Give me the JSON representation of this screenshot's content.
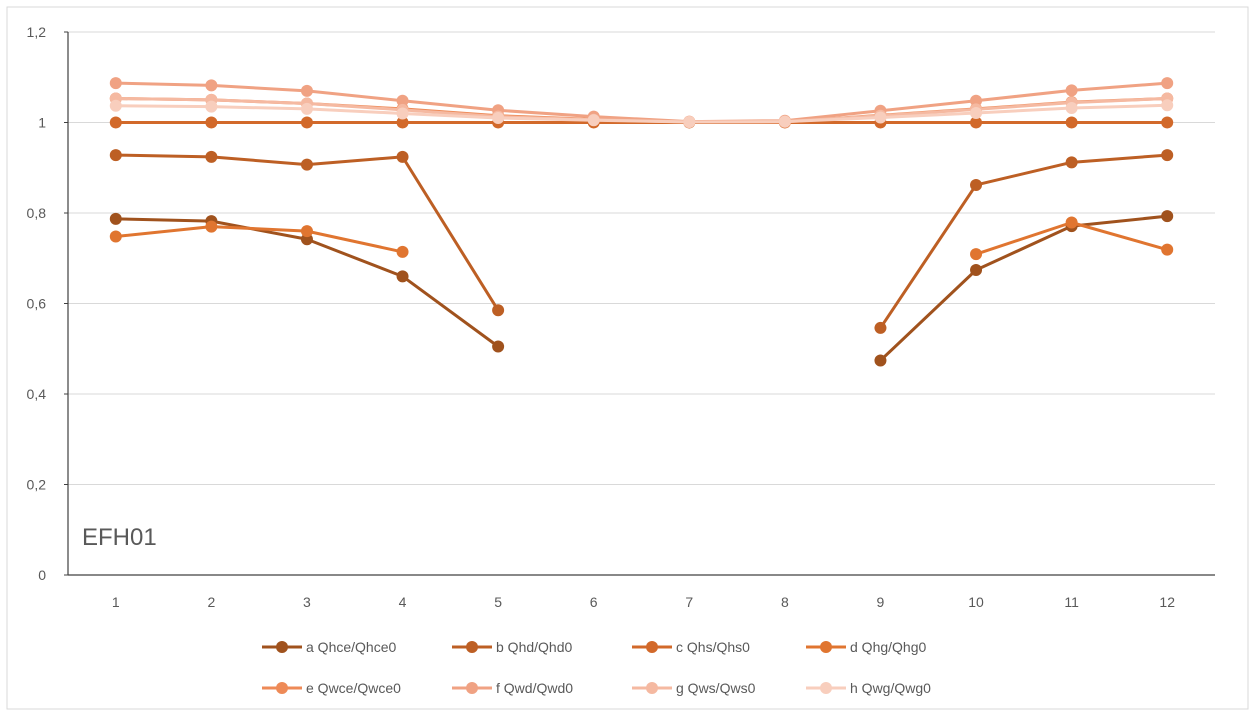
{
  "chart_data": {
    "type": "line",
    "title": "",
    "xlabel": "",
    "ylabel": "",
    "x": [
      1,
      2,
      3,
      4,
      5,
      6,
      7,
      8,
      9,
      10,
      11,
      12
    ],
    "x_tick_labels": [
      "1",
      "2",
      "3",
      "4",
      "5",
      "6",
      "7",
      "8",
      "9",
      "10",
      "11",
      "12"
    ],
    "ylim": [
      0,
      1.2
    ],
    "y_ticks": [
      0,
      0.2,
      0.4,
      0.6,
      0.8,
      1,
      1.2
    ],
    "y_tick_labels": [
      "0",
      "0,2",
      "0,4",
      "0,6",
      "0,8",
      "1",
      "1,2"
    ],
    "grid": "horizontal",
    "legend_position": "bottom",
    "annotation": "EFH01",
    "series": [
      {
        "name": "a Qhce/Qhce0",
        "color": "#a0521d",
        "values": [
          0.787,
          0.782,
          0.742,
          0.66,
          0.505,
          null,
          null,
          null,
          0.474,
          0.674,
          0.771,
          0.793
        ]
      },
      {
        "name": "b Qhd/Qhd0",
        "color": "#bd5f24",
        "values": [
          0.928,
          0.924,
          0.907,
          0.924,
          0.585,
          null,
          null,
          null,
          0.546,
          0.862,
          0.912,
          0.928
        ]
      },
      {
        "name": "c Qhs/Qhs0",
        "color": "#d2692a",
        "values": [
          1,
          1,
          1,
          1,
          1,
          1,
          1,
          1,
          1,
          1,
          1,
          1
        ]
      },
      {
        "name": "d Qhg/Qhg0",
        "color": "#e07530",
        "values": [
          0.748,
          0.77,
          0.76,
          0.714,
          null,
          null,
          null,
          null,
          null,
          0.709,
          0.779,
          0.719
        ]
      },
      {
        "name": "e Qwce/Qwce0",
        "color": "#ee8a57",
        "values": [
          1.053,
          1.05,
          1.042,
          1.03,
          1.015,
          1.007,
          1.001,
          1.001,
          1.016,
          1.03,
          1.045,
          1.053
        ]
      },
      {
        "name": "f Qwd/Qwd0",
        "color": "#f0a283",
        "values": [
          1.087,
          1.082,
          1.07,
          1.048,
          1.027,
          1.013,
          1.002,
          1.004,
          1.026,
          1.048,
          1.071,
          1.087
        ]
      },
      {
        "name": "g Qws/Qws0",
        "color": "#f5b9a1",
        "values": [
          1.053,
          1.05,
          1.042,
          1.028,
          1.013,
          1.006,
          1.001,
          1.002,
          1.015,
          1.029,
          1.044,
          1.053
        ]
      },
      {
        "name": "h Qwg/Qwg0",
        "color": "#f8cebd",
        "values": [
          1.037,
          1.035,
          1.03,
          1.02,
          1.01,
          1.005,
          1.001,
          1.002,
          1.011,
          1.021,
          1.032,
          1.038
        ]
      }
    ]
  }
}
